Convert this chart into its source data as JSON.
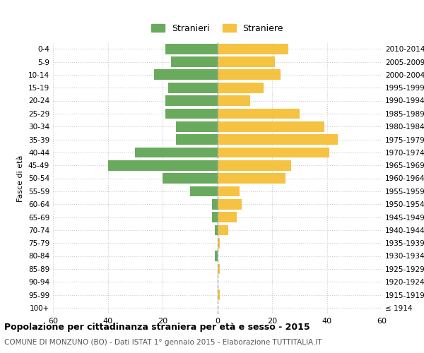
{
  "age_groups": [
    "100+",
    "95-99",
    "90-94",
    "85-89",
    "80-84",
    "75-79",
    "70-74",
    "65-69",
    "60-64",
    "55-59",
    "50-54",
    "45-49",
    "40-44",
    "35-39",
    "30-34",
    "25-29",
    "20-24",
    "15-19",
    "10-14",
    "5-9",
    "0-4"
  ],
  "birth_years": [
    "≤ 1914",
    "1915-1919",
    "1920-1924",
    "1925-1929",
    "1930-1934",
    "1935-1939",
    "1940-1944",
    "1945-1949",
    "1950-1954",
    "1955-1959",
    "1960-1964",
    "1965-1969",
    "1970-1974",
    "1975-1979",
    "1980-1984",
    "1985-1989",
    "1990-1994",
    "1995-1999",
    "2000-2004",
    "2005-2009",
    "2010-2014"
  ],
  "males": [
    0,
    0,
    0,
    0,
    1,
    0,
    1,
    2,
    2,
    10,
    20,
    40,
    30,
    15,
    15,
    19,
    19,
    18,
    23,
    17,
    19
  ],
  "females": [
    0,
    1,
    0,
    1,
    0,
    1,
    4,
    7,
    9,
    8,
    25,
    27,
    41,
    44,
    39,
    30,
    12,
    17,
    23,
    21,
    26
  ],
  "male_color": "#6aaa5e",
  "female_color": "#f5c242",
  "background_color": "#ffffff",
  "grid_color": "#cccccc",
  "dashed_line_color": "#aaaaaa",
  "title": "Popolazione per cittadinanza straniera per età e sesso - 2015",
  "subtitle": "COMUNE DI MONZUNO (BO) - Dati ISTAT 1° gennaio 2015 - Elaborazione TUTTITALIA.IT",
  "ylabel_left": "Fasce di età",
  "legend_male": "Stranieri",
  "legend_female": "Straniere",
  "xlim": 60,
  "bar_height": 0.8
}
